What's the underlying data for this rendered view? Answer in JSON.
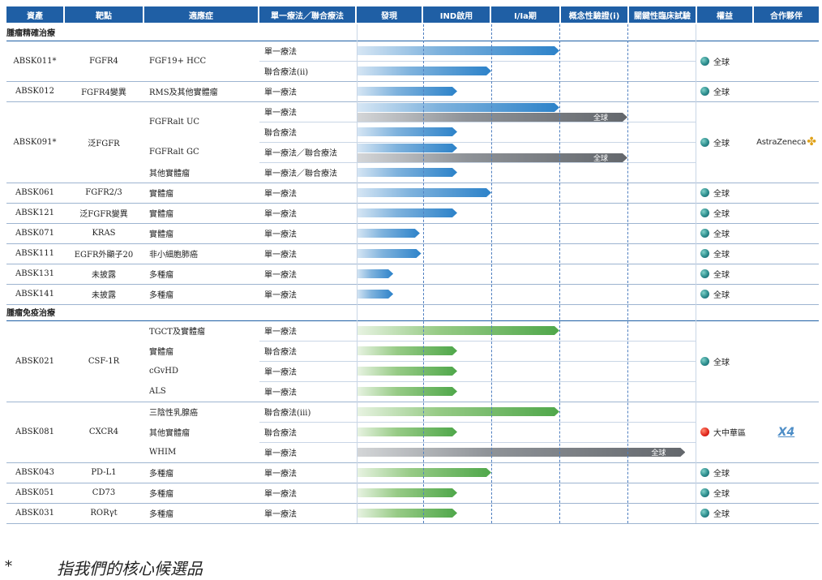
{
  "headers": [
    "資產",
    "靶點",
    "適應症",
    "單一療法／聯合療法",
    "發現",
    "IND啟用",
    "I/Ia期",
    "概念性驗證(i)",
    "關鍵性臨床試驗",
    "權益",
    "合作夥伴"
  ],
  "sections": [
    {
      "title": "腫瘤精確治療",
      "assets": [
        {
          "name": "ABSK011*",
          "target": "FGFR4",
          "rights": "全球",
          "rights_color": "globe",
          "partner": "",
          "rows": [
            {
              "indication": "FGF19+ HCC",
              "therapy": "單一療法",
              "stage_end": 3.0,
              "color": "blue"
            },
            {
              "indication": "",
              "therapy": "聯合療法(ii)",
              "stage_end": 2.0,
              "color": "blue"
            }
          ]
        },
        {
          "name": "ABSK012",
          "target": "FGFR4變異",
          "rights": "全球",
          "rights_color": "globe",
          "partner": "",
          "rows": [
            {
              "indication": "RMS及其他實體瘤",
              "therapy": "單一療法",
              "stage_end": 1.5,
              "color": "blue"
            }
          ]
        },
        {
          "name": "ABSK091*",
          "target": "泛FGFR",
          "rights": "全球",
          "rights_color": "globe",
          "partner": "AstraZeneca",
          "rows": [
            {
              "indication": "FGFRalt UC",
              "therapy": "單一療法",
              "stage_end": 3.0,
              "color": "blue",
              "gray_end": 4.0,
              "gray_label": "全球"
            },
            {
              "indication": "",
              "therapy": "聯合療法",
              "stage_end": 1.5,
              "color": "blue"
            },
            {
              "indication": "FGFRalt GC",
              "therapy": "單一療法／聯合療法",
              "stage_end": 1.5,
              "color": "blue",
              "gray_end": 4.0,
              "gray_label": "全球"
            },
            {
              "indication": "其他實體瘤",
              "therapy": "單一療法／聯合療法",
              "stage_end": 1.5,
              "color": "blue"
            }
          ]
        },
        {
          "name": "ABSK061",
          "target": "FGFR2/3",
          "rights": "全球",
          "rights_color": "globe",
          "partner": "",
          "rows": [
            {
              "indication": "實體瘤",
              "therapy": "單一療法",
              "stage_end": 2.0,
              "color": "blue"
            }
          ]
        },
        {
          "name": "ABSK121",
          "target": "泛FGFR變異",
          "rights": "全球",
          "rights_color": "globe",
          "partner": "",
          "rows": [
            {
              "indication": "實體瘤",
              "therapy": "單一療法",
              "stage_end": 1.5,
              "color": "blue"
            }
          ]
        },
        {
          "name": "ABSK071",
          "target": "KRAS",
          "rights": "全球",
          "rights_color": "globe",
          "partner": "",
          "rows": [
            {
              "indication": "實體瘤",
              "therapy": "單一療法",
              "stage_end": 0.95,
              "color": "blue"
            }
          ]
        },
        {
          "name": "ABSK111",
          "target": "EGFR外顯子20",
          "rights": "全球",
          "rights_color": "globe",
          "partner": "",
          "rows": [
            {
              "indication": "非小細胞肺癌",
              "therapy": "單一療法",
              "stage_end": 0.97,
              "color": "blue"
            }
          ]
        },
        {
          "name": "ABSK131",
          "target": "未披露",
          "rights": "全球",
          "rights_color": "globe",
          "partner": "",
          "rows": [
            {
              "indication": "多種瘤",
              "therapy": "單一療法",
              "stage_end": 0.55,
              "color": "blue"
            }
          ]
        },
        {
          "name": "ABSK141",
          "target": "未披露",
          "rights": "全球",
          "rights_color": "globe",
          "partner": "",
          "rows": [
            {
              "indication": "多種瘤",
              "therapy": "單一療法",
              "stage_end": 0.55,
              "color": "blue"
            }
          ]
        }
      ]
    },
    {
      "title": "腫瘤免疫治療",
      "assets": [
        {
          "name": "ABSK021",
          "target": "CSF-1R",
          "rights": "全球",
          "rights_color": "globe",
          "partner": "",
          "rows": [
            {
              "indication": "TGCT及實體瘤",
              "therapy": "單一療法",
              "stage_end": 3.0,
              "color": "green"
            },
            {
              "indication": "實體瘤",
              "therapy": "聯合療法",
              "stage_end": 1.5,
              "color": "green"
            },
            {
              "indication": "cGvHD",
              "therapy": "單一療法",
              "stage_end": 1.5,
              "color": "green"
            },
            {
              "indication": "ALS",
              "therapy": "單一療法",
              "stage_end": 1.5,
              "color": "green"
            }
          ]
        },
        {
          "name": "ABSK081",
          "target": "CXCR4",
          "rights": "大中華區",
          "rights_color": "red",
          "partner": "X4",
          "rows": [
            {
              "indication": "三陰性乳腺癌",
              "therapy": "聯合療法(iii)",
              "stage_end": 3.0,
              "color": "green"
            },
            {
              "indication": "其他實體瘤",
              "therapy": "聯合療法",
              "stage_end": 1.5,
              "color": "green"
            },
            {
              "indication": "WHIM",
              "therapy": "單一療法",
              "stage_end": 0,
              "color": "green",
              "gray_end": 4.85,
              "gray_label": "全球"
            }
          ]
        },
        {
          "name": "ABSK043",
          "target": "PD-L1",
          "rights": "全球",
          "rights_color": "globe",
          "partner": "",
          "rows": [
            {
              "indication": "多種瘤",
              "therapy": "單一療法",
              "stage_end": 2.0,
              "color": "green"
            }
          ]
        },
        {
          "name": "ABSK051",
          "target": "CD73",
          "rights": "全球",
          "rights_color": "globe",
          "partner": "",
          "rows": [
            {
              "indication": "多種瘤",
              "therapy": "單一療法",
              "stage_end": 1.5,
              "color": "green"
            }
          ]
        },
        {
          "name": "ABSK031",
          "target": "RORγt",
          "rights": "全球",
          "rights_color": "globe",
          "partner": "",
          "rows": [
            {
              "indication": "多種瘤",
              "therapy": "單一療法",
              "stage_end": 1.5,
              "color": "green"
            }
          ]
        }
      ]
    }
  ],
  "footnote": {
    "mark": "*",
    "text": "指我們的核心候選品"
  }
}
